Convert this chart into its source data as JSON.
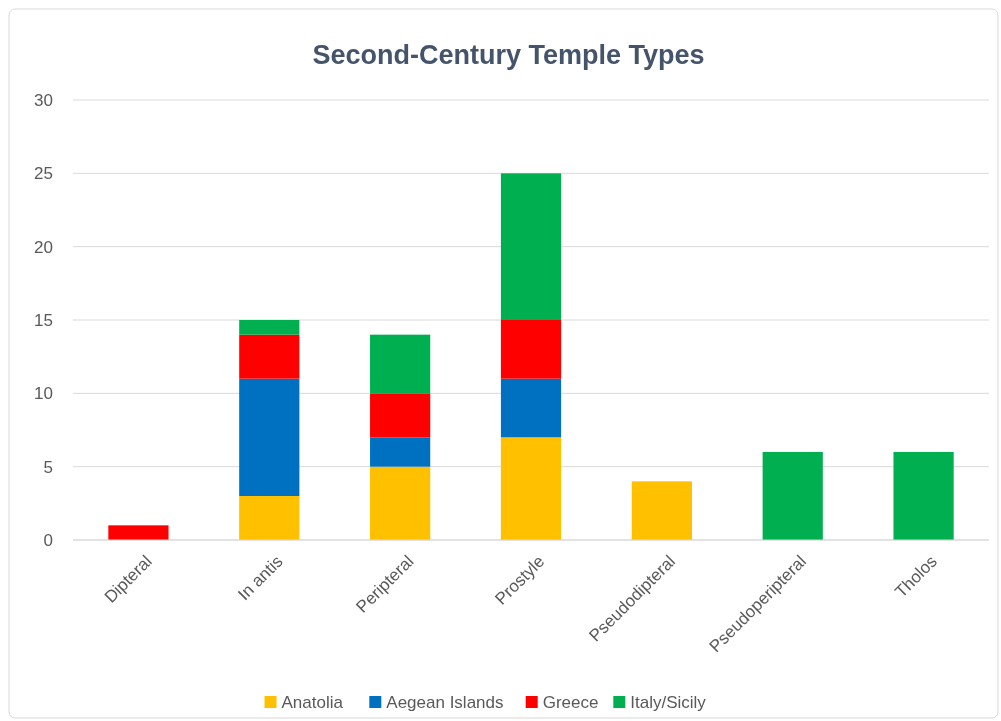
{
  "chart_data": {
    "type": "bar",
    "title": "Second-Century Temple Types",
    "stacked": true,
    "categories": [
      "Dipteral",
      "In antis",
      "Peripteral",
      "Prostyle",
      "Pseudodipteral",
      "Pseudoperipteral",
      "Tholos"
    ],
    "series": [
      {
        "name": "Anatolia",
        "color": "#ffc000",
        "values": [
          null,
          3,
          5,
          7,
          4,
          null,
          null
        ]
      },
      {
        "name": "Aegean Islands",
        "color": "#0070c0",
        "values": [
          null,
          8,
          2,
          4,
          null,
          null,
          null
        ]
      },
      {
        "name": "Greece",
        "color": "#ff0000",
        "values": [
          1,
          3,
          3,
          4,
          null,
          null,
          null
        ]
      },
      {
        "name": "Italy/Sicily",
        "color": "#00b050",
        "values": [
          null,
          1,
          4,
          10,
          null,
          6,
          6
        ]
      }
    ],
    "ylim": [
      0,
      30
    ],
    "yticks": [
      0,
      5,
      10,
      15,
      20,
      25,
      30
    ],
    "grid": "y",
    "legend": "bottom"
  }
}
